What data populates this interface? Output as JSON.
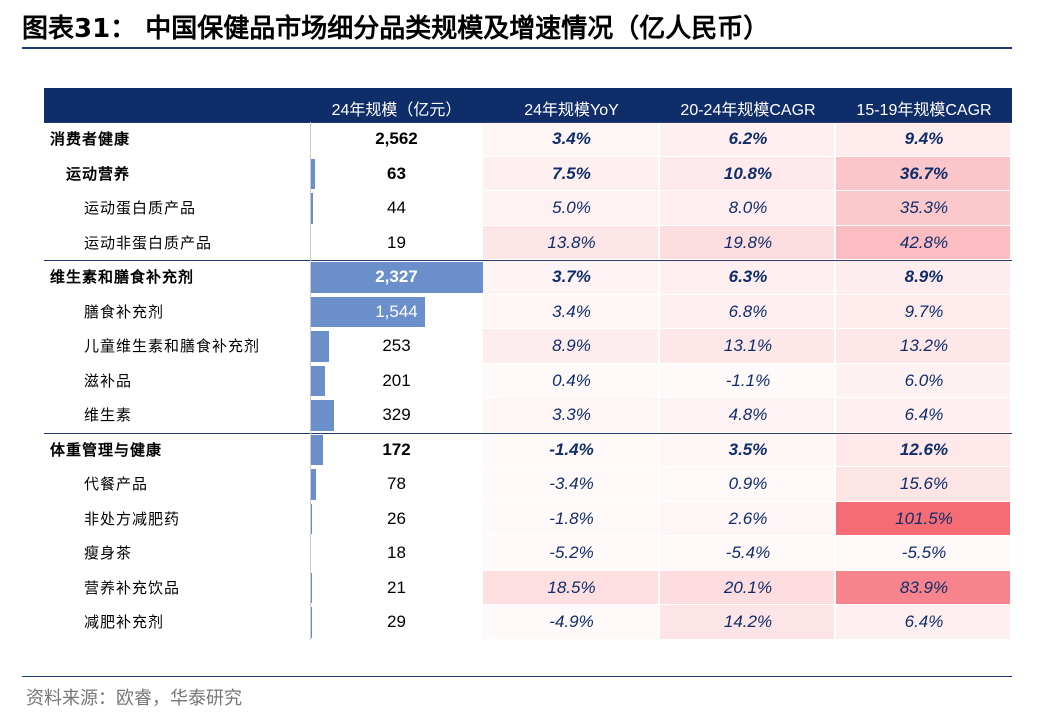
{
  "header": {
    "title": "图表31：  中国保健品市场细分品类规模及增速情况（亿人民币）"
  },
  "table": {
    "columns": [
      "24年规模（亿元）",
      "24年规模YoY",
      "20-24年规模CAGR",
      "15-19年规模CAGR"
    ],
    "rows": [
      {
        "label": "消费者健康",
        "level": 0,
        "cells": [
          "2,562",
          "3.4%",
          "6.2%",
          "9.4%"
        ]
      },
      {
        "label": "运动营养",
        "level": 1,
        "cells": [
          "63",
          "7.5%",
          "10.8%",
          "36.7%"
        ]
      },
      {
        "label": "运动蛋白质产品",
        "level": 2,
        "cells": [
          "44",
          "5.0%",
          "8.0%",
          "35.3%"
        ]
      },
      {
        "label": "运动非蛋白质产品",
        "level": 2,
        "cells": [
          "19",
          "13.8%",
          "19.8%",
          "42.8%"
        ]
      },
      {
        "label": "维生素和膳食补充剂",
        "level": 0,
        "cells": [
          "2,327",
          "3.7%",
          "6.3%",
          "8.9%"
        ]
      },
      {
        "label": "膳食补充剂",
        "level": 2,
        "cells": [
          "1,544",
          "3.4%",
          "6.8%",
          "9.7%"
        ]
      },
      {
        "label": "儿童维生素和膳食补充剂",
        "level": 2,
        "cells": [
          "253",
          "8.9%",
          "13.1%",
          "13.2%"
        ]
      },
      {
        "label": "滋补品",
        "level": 2,
        "cells": [
          "201",
          "0.4%",
          "-1.1%",
          "6.0%"
        ]
      },
      {
        "label": "维生素",
        "level": 2,
        "cells": [
          "329",
          "3.3%",
          "4.8%",
          "6.4%"
        ]
      },
      {
        "label": "体重管理与健康",
        "level": 0,
        "cells": [
          "172",
          "-1.4%",
          "3.5%",
          "12.6%"
        ]
      },
      {
        "label": "代餐产品",
        "level": 2,
        "cells": [
          "78",
          "-3.4%",
          "0.9%",
          "15.6%"
        ]
      },
      {
        "label": "非处方减肥药",
        "level": 2,
        "cells": [
          "26",
          "-1.8%",
          "2.6%",
          "101.5%"
        ]
      },
      {
        "label": "瘦身茶",
        "level": 2,
        "cells": [
          "18",
          "-5.2%",
          "-5.4%",
          "-5.5%"
        ]
      },
      {
        "label": "营养补充饮品",
        "level": 2,
        "cells": [
          "21",
          "18.5%",
          "20.1%",
          "83.9%"
        ]
      },
      {
        "label": "减肥补充剂",
        "level": 2,
        "cells": [
          "29",
          "-4.9%",
          "14.2%",
          "6.4%"
        ]
      }
    ]
  },
  "footer": {
    "source": "资料来源：欧睿，华泰研究"
  }
}
